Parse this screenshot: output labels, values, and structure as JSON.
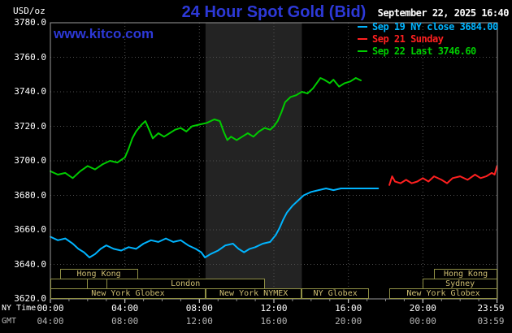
{
  "header": {
    "unit_label": "USD/oz",
    "title": "24 Hour Spot Gold (Bid)",
    "datetime": "September 22, 2025 16:40",
    "watermark": "www.kitco.com"
  },
  "legend": {
    "items": [
      {
        "label": "Sep 19 NY close 3684.00",
        "color": "#00b4ff"
      },
      {
        "label": "Sep 21 Sunday",
        "color": "#ff2020"
      },
      {
        "label": "Sep 22 Last 3746.60",
        "color": "#00cc00"
      }
    ]
  },
  "axes": {
    "ny_label": "NY Time",
    "gmt_label": "GMT",
    "y_ticks": [
      "3780.0",
      "3760.0",
      "3740.0",
      "3720.0",
      "3700.0",
      "3680.0",
      "3660.0",
      "3640.0",
      "3620.0"
    ],
    "x_ticks": [
      {
        "hour": 0,
        "ny": "00:00",
        "gmt": "04:00"
      },
      {
        "hour": 4,
        "ny": "04:00",
        "gmt": "08:00"
      },
      {
        "hour": 8,
        "ny": "08:00",
        "gmt": "12:00"
      },
      {
        "hour": 12,
        "ny": "12:00",
        "gmt": "16:00"
      },
      {
        "hour": 16,
        "ny": "16:00",
        "gmt": "20:00"
      },
      {
        "hour": 20,
        "ny": "20:00",
        "gmt": "00:00"
      },
      {
        "hour": 23.983,
        "ny": "23:59",
        "gmt": "03:59"
      }
    ]
  },
  "sessions": [
    {
      "label": "Hong Kong",
      "row": 0,
      "start": 0.5,
      "end": 4.7
    },
    {
      "label": "Hong Kong",
      "row": 0,
      "start": 20.6,
      "end": 24
    },
    {
      "label": "",
      "row": 1,
      "start": 0,
      "end": 2
    },
    {
      "label": "London",
      "row": 1,
      "start": 3,
      "end": 11.5
    },
    {
      "label": "Sydney",
      "row": 1,
      "start": 20,
      "end": 24
    },
    {
      "label": "New York Globex",
      "row": 2,
      "start": 0,
      "end": 8.33
    },
    {
      "label": "New York NYMEX",
      "row": 2,
      "start": 8.33,
      "end": 13.5
    },
    {
      "label": "NY Globex",
      "row": 2,
      "start": 13.5,
      "end": 17.1
    },
    {
      "label": "New York Globex",
      "row": 2,
      "start": 18.2,
      "end": 24
    }
  ],
  "colors": {
    "background": "#000000",
    "title": "#2d39d8",
    "grid": "#505050",
    "border": "#9a9a9a",
    "band": "#232323",
    "session_border": "#8f8f45",
    "session_text": "#cdbd72",
    "axis_text": "#ffffff",
    "gmt_text": "#b4b4b4"
  },
  "chart_data": {
    "type": "line",
    "title": "24 Hour Spot Gold (Bid)",
    "xlabel": "NY Time (hours)",
    "ylabel": "USD/oz",
    "xlim": [
      0,
      24
    ],
    "ylim": [
      3620,
      3780
    ],
    "grid": "dotted",
    "legend_position": "top-right",
    "comex_floor_band_hours": [
      8.33,
      13.5
    ],
    "series": [
      {
        "name": "Sep 19 NY close 3684.00",
        "color": "#00b4ff",
        "points": [
          [
            0,
            3656
          ],
          [
            0.4,
            3654
          ],
          [
            0.8,
            3655
          ],
          [
            1.2,
            3652
          ],
          [
            1.5,
            3649
          ],
          [
            1.8,
            3647
          ],
          [
            2.1,
            3644
          ],
          [
            2.4,
            3646
          ],
          [
            2.7,
            3649
          ],
          [
            3,
            3651
          ],
          [
            3.4,
            3649
          ],
          [
            3.8,
            3648
          ],
          [
            4.2,
            3650
          ],
          [
            4.6,
            3649
          ],
          [
            5,
            3652
          ],
          [
            5.4,
            3654
          ],
          [
            5.8,
            3653
          ],
          [
            6.2,
            3655
          ],
          [
            6.6,
            3653
          ],
          [
            7,
            3654
          ],
          [
            7.4,
            3651
          ],
          [
            7.8,
            3649
          ],
          [
            8.1,
            3647
          ],
          [
            8.3,
            3644
          ],
          [
            8.6,
            3646
          ],
          [
            9,
            3648
          ],
          [
            9.4,
            3651
          ],
          [
            9.8,
            3652
          ],
          [
            10.1,
            3649
          ],
          [
            10.4,
            3647
          ],
          [
            10.7,
            3649
          ],
          [
            11,
            3650
          ],
          [
            11.4,
            3652
          ],
          [
            11.8,
            3653
          ],
          [
            12.1,
            3657
          ],
          [
            12.3,
            3661
          ],
          [
            12.5,
            3666
          ],
          [
            12.7,
            3670
          ],
          [
            13,
            3674
          ],
          [
            13.3,
            3677
          ],
          [
            13.6,
            3680
          ],
          [
            14,
            3682
          ],
          [
            14.4,
            3683
          ],
          [
            14.8,
            3684
          ],
          [
            15.2,
            3683
          ],
          [
            15.6,
            3684
          ],
          [
            16,
            3684
          ],
          [
            16.5,
            3684
          ],
          [
            17,
            3684
          ],
          [
            17.6,
            3684
          ]
        ]
      },
      {
        "name": "Sep 21 Sunday",
        "color": "#ff2020",
        "points": [
          [
            18.2,
            3686
          ],
          [
            18.35,
            3691
          ],
          [
            18.5,
            3688
          ],
          [
            18.8,
            3687
          ],
          [
            19.1,
            3689
          ],
          [
            19.4,
            3687
          ],
          [
            19.7,
            3688
          ],
          [
            20,
            3690
          ],
          [
            20.3,
            3688
          ],
          [
            20.6,
            3691
          ],
          [
            21,
            3689
          ],
          [
            21.3,
            3687
          ],
          [
            21.6,
            3690
          ],
          [
            22,
            3691
          ],
          [
            22.4,
            3689
          ],
          [
            22.8,
            3692
          ],
          [
            23.1,
            3690
          ],
          [
            23.4,
            3691
          ],
          [
            23.7,
            3693
          ],
          [
            23.85,
            3692
          ],
          [
            23.98,
            3697
          ]
        ]
      },
      {
        "name": "Sep 22 Last 3746.60",
        "color": "#00cc00",
        "points": [
          [
            0,
            3694
          ],
          [
            0.4,
            3692
          ],
          [
            0.8,
            3693
          ],
          [
            1.2,
            3690
          ],
          [
            1.6,
            3694
          ],
          [
            2,
            3697
          ],
          [
            2.4,
            3695
          ],
          [
            2.8,
            3698
          ],
          [
            3.2,
            3700
          ],
          [
            3.6,
            3699
          ],
          [
            4,
            3702
          ],
          [
            4.2,
            3707
          ],
          [
            4.4,
            3713
          ],
          [
            4.6,
            3717
          ],
          [
            4.9,
            3721
          ],
          [
            5.1,
            3723
          ],
          [
            5.3,
            3718
          ],
          [
            5.5,
            3713
          ],
          [
            5.8,
            3716
          ],
          [
            6.1,
            3714
          ],
          [
            6.4,
            3716
          ],
          [
            6.7,
            3718
          ],
          [
            7,
            3719
          ],
          [
            7.3,
            3717
          ],
          [
            7.6,
            3720
          ],
          [
            8,
            3721
          ],
          [
            8.4,
            3722
          ],
          [
            8.8,
            3724
          ],
          [
            9.1,
            3723
          ],
          [
            9.3,
            3717
          ],
          [
            9.5,
            3712
          ],
          [
            9.7,
            3714
          ],
          [
            10,
            3712
          ],
          [
            10.3,
            3714
          ],
          [
            10.6,
            3716
          ],
          [
            10.9,
            3714
          ],
          [
            11.2,
            3717
          ],
          [
            11.5,
            3719
          ],
          [
            11.8,
            3718
          ],
          [
            12,
            3720
          ],
          [
            12.2,
            3723
          ],
          [
            12.4,
            3728
          ],
          [
            12.6,
            3734
          ],
          [
            12.9,
            3737
          ],
          [
            13.2,
            3738
          ],
          [
            13.5,
            3740
          ],
          [
            13.8,
            3739
          ],
          [
            14.1,
            3742
          ],
          [
            14.3,
            3745
          ],
          [
            14.5,
            3748
          ],
          [
            14.7,
            3747
          ],
          [
            15,
            3745
          ],
          [
            15.2,
            3747
          ],
          [
            15.5,
            3743
          ],
          [
            15.8,
            3745
          ],
          [
            16.1,
            3746
          ],
          [
            16.4,
            3748
          ],
          [
            16.67,
            3746.6
          ]
        ]
      }
    ]
  }
}
